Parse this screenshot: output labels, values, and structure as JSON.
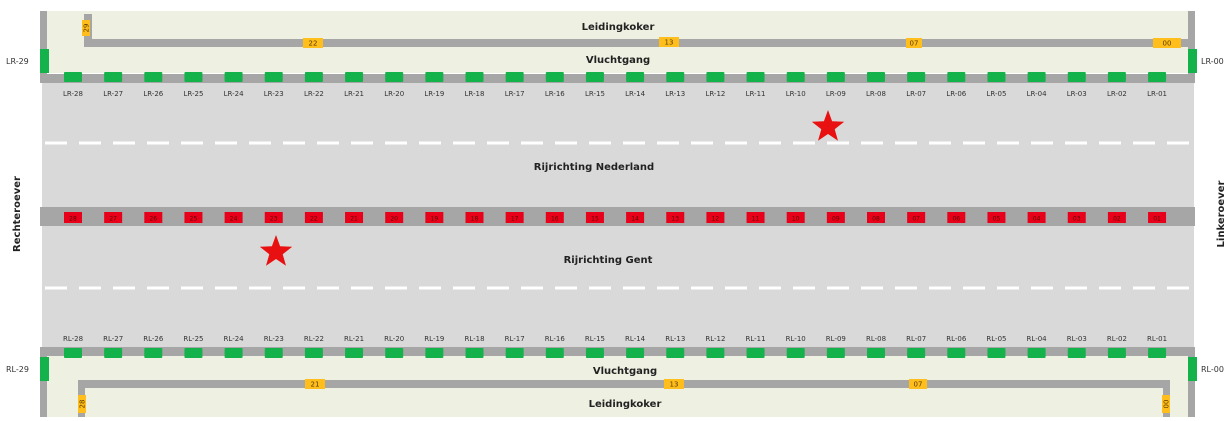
{
  "labels": {
    "leidingkoker": "Leidingkoker",
    "vluchtgang": "Vluchtgang",
    "direction_nl": "Rijrichting Nederland",
    "direction_gent": "Rijrichting Gent",
    "left_bank": "Rechteroever",
    "right_bank": "Linkeroever"
  },
  "end_markers": {
    "top_left": "LR-29",
    "top_right": "LR-00",
    "bottom_left": "RL-29",
    "bottom_right": "RL-00"
  },
  "top_pipe_markers": [
    "29",
    "22",
    "13",
    "07",
    "00"
  ],
  "bottom_pipe_markers": [
    "28",
    "21",
    "13",
    "07",
    "00"
  ],
  "lr_doors": [
    "LR-28",
    "LR-27",
    "LR-26",
    "LR-25",
    "LR-24",
    "LR-23",
    "LR-22",
    "LR-21",
    "LR-20",
    "LR-19",
    "LR-18",
    "LR-17",
    "LR-16",
    "LR-15",
    "LR-14",
    "LR-13",
    "LR-12",
    "LR-11",
    "LR-10",
    "LR-09",
    "LR-08",
    "LR-07",
    "LR-06",
    "LR-05",
    "LR-04",
    "LR-03",
    "LR-02",
    "LR-01"
  ],
  "median_doors": [
    "28",
    "27",
    "26",
    "25",
    "24",
    "23",
    "22",
    "21",
    "20",
    "19",
    "18",
    "17",
    "16",
    "15",
    "14",
    "13",
    "12",
    "11",
    "10",
    "09",
    "08",
    "07",
    "06",
    "05",
    "04",
    "03",
    "02",
    "01"
  ],
  "rl_doors": [
    "RL-28",
    "RL-27",
    "RL-26",
    "RL-25",
    "RL-24",
    "RL-23",
    "RL-22",
    "RL-21",
    "RL-20",
    "RL-19",
    "RL-18",
    "RL-17",
    "RL-16",
    "RL-15",
    "RL-14",
    "RL-13",
    "RL-12",
    "RL-11",
    "RL-10",
    "RL-09",
    "RL-08",
    "RL-07",
    "RL-06",
    "RL-05",
    "RL-04",
    "RL-03",
    "RL-02",
    "RL-01"
  ],
  "incidents": [
    {
      "lane": "Rijrichting Nederland",
      "near_door": "LR-09"
    },
    {
      "lane": "Rijrichting Gent",
      "near_door": "23"
    }
  ],
  "colors": {
    "door_green": "#13b24a",
    "median_red": "#e8001a",
    "pipe_marker": "#ffbe1c",
    "star": "#e81010",
    "tunnel_gray": "#d9d9d9",
    "wall_gray": "#a6a6a6",
    "gallery_bg": "#eef0e2"
  }
}
